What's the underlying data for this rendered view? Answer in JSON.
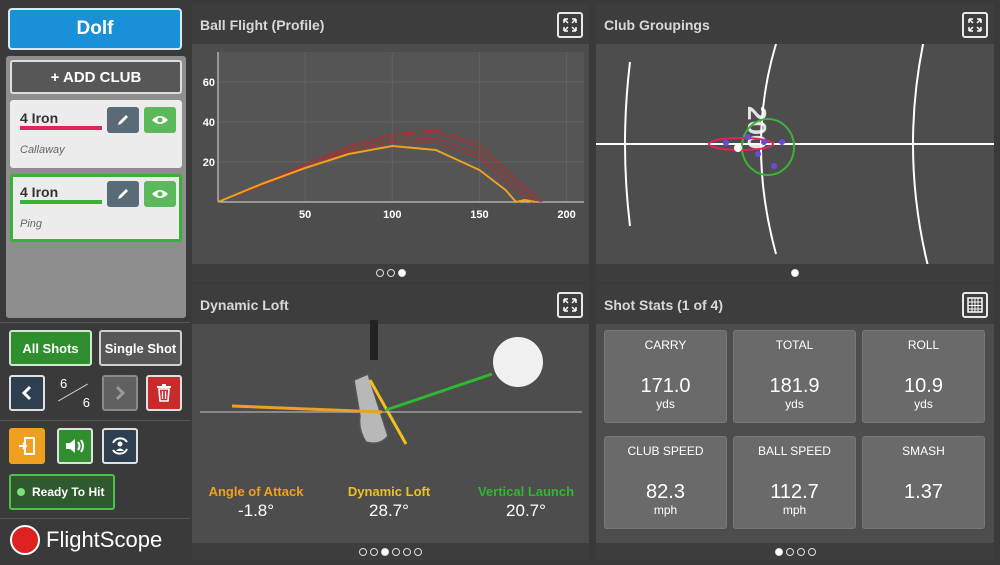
{
  "sidebar": {
    "player": "Dolf",
    "add_club": "+ ADD CLUB",
    "clubs": [
      {
        "name": "4 Iron",
        "brand": "Callaway",
        "color": "#e0245e"
      },
      {
        "name": "4 Iron",
        "brand": "Ping",
        "color": "#3ab23a"
      }
    ],
    "all_shots": "All Shots",
    "single_shot": "Single Shot",
    "shot_current": "6",
    "shot_total": "6",
    "ready": "Ready To Hit",
    "logo": "FlightScope"
  },
  "ball_flight": {
    "title": "Ball Flight (Profile)",
    "page_dots": [
      false,
      false,
      true
    ]
  },
  "club_groupings": {
    "title": "Club Groupings",
    "distance_label": "200",
    "page_dots": [
      true
    ]
  },
  "dynamic_loft": {
    "title": "Dynamic Loft",
    "angle_of_attack_label": "Angle of Attack",
    "angle_of_attack": "-1.8°",
    "dynamic_loft_label": "Dynamic Loft",
    "dynamic_loft": "28.7°",
    "vertical_launch_label": "Vertical Launch",
    "vertical_launch": "20.7°",
    "page_dots": [
      false,
      false,
      true,
      false,
      false,
      false
    ]
  },
  "shot_stats": {
    "title": "Shot Stats (1 of 4)",
    "stats": [
      {
        "label": "CARRY",
        "value": "171.0",
        "unit": "yds"
      },
      {
        "label": "TOTAL",
        "value": "181.9",
        "unit": "yds"
      },
      {
        "label": "ROLL",
        "value": "10.9",
        "unit": "yds"
      },
      {
        "label": "CLUB SPEED",
        "value": "82.3",
        "unit": "mph"
      },
      {
        "label": "BALL SPEED",
        "value": "112.7",
        "unit": "mph"
      },
      {
        "label": "SMASH",
        "value": "1.37",
        "unit": ""
      }
    ],
    "page_dots": [
      true,
      false,
      false,
      false
    ]
  },
  "chart_data": {
    "type": "line",
    "x_ticks": [
      50,
      100,
      150,
      200
    ],
    "y_ticks": [
      20,
      40,
      60
    ],
    "xlim": [
      0,
      210
    ],
    "ylim": [
      0,
      75
    ],
    "series": [
      {
        "color": "#f0a020",
        "x": [
          0,
          25,
          50,
          75,
          100,
          125,
          150,
          165,
          171,
          176,
          182
        ],
        "y": [
          0,
          9,
          17,
          24,
          28,
          26,
          16,
          6,
          0,
          1,
          0
        ]
      },
      {
        "color": "#a83232",
        "x": [
          0,
          25,
          50,
          75,
          100,
          125,
          150,
          170,
          182
        ],
        "y": [
          0,
          9,
          18,
          26,
          31,
          32,
          24,
          8,
          0
        ]
      },
      {
        "color": "#a83232",
        "x": [
          0,
          25,
          50,
          75,
          100,
          125,
          150,
          172,
          185
        ],
        "y": [
          0,
          9,
          18,
          27,
          33,
          35,
          27,
          9,
          0
        ]
      },
      {
        "color": "#a83232",
        "x": [
          0,
          25,
          50,
          75,
          100,
          125,
          150,
          168,
          180
        ],
        "y": [
          0,
          8,
          17,
          25,
          30,
          30,
          22,
          7,
          0
        ]
      },
      {
        "color": "#a83232",
        "x": [
          0,
          25,
          50,
          75,
          100,
          125,
          150,
          172,
          186
        ],
        "y": [
          0,
          9,
          19,
          28,
          34,
          36,
          29,
          11,
          0
        ]
      }
    ]
  }
}
